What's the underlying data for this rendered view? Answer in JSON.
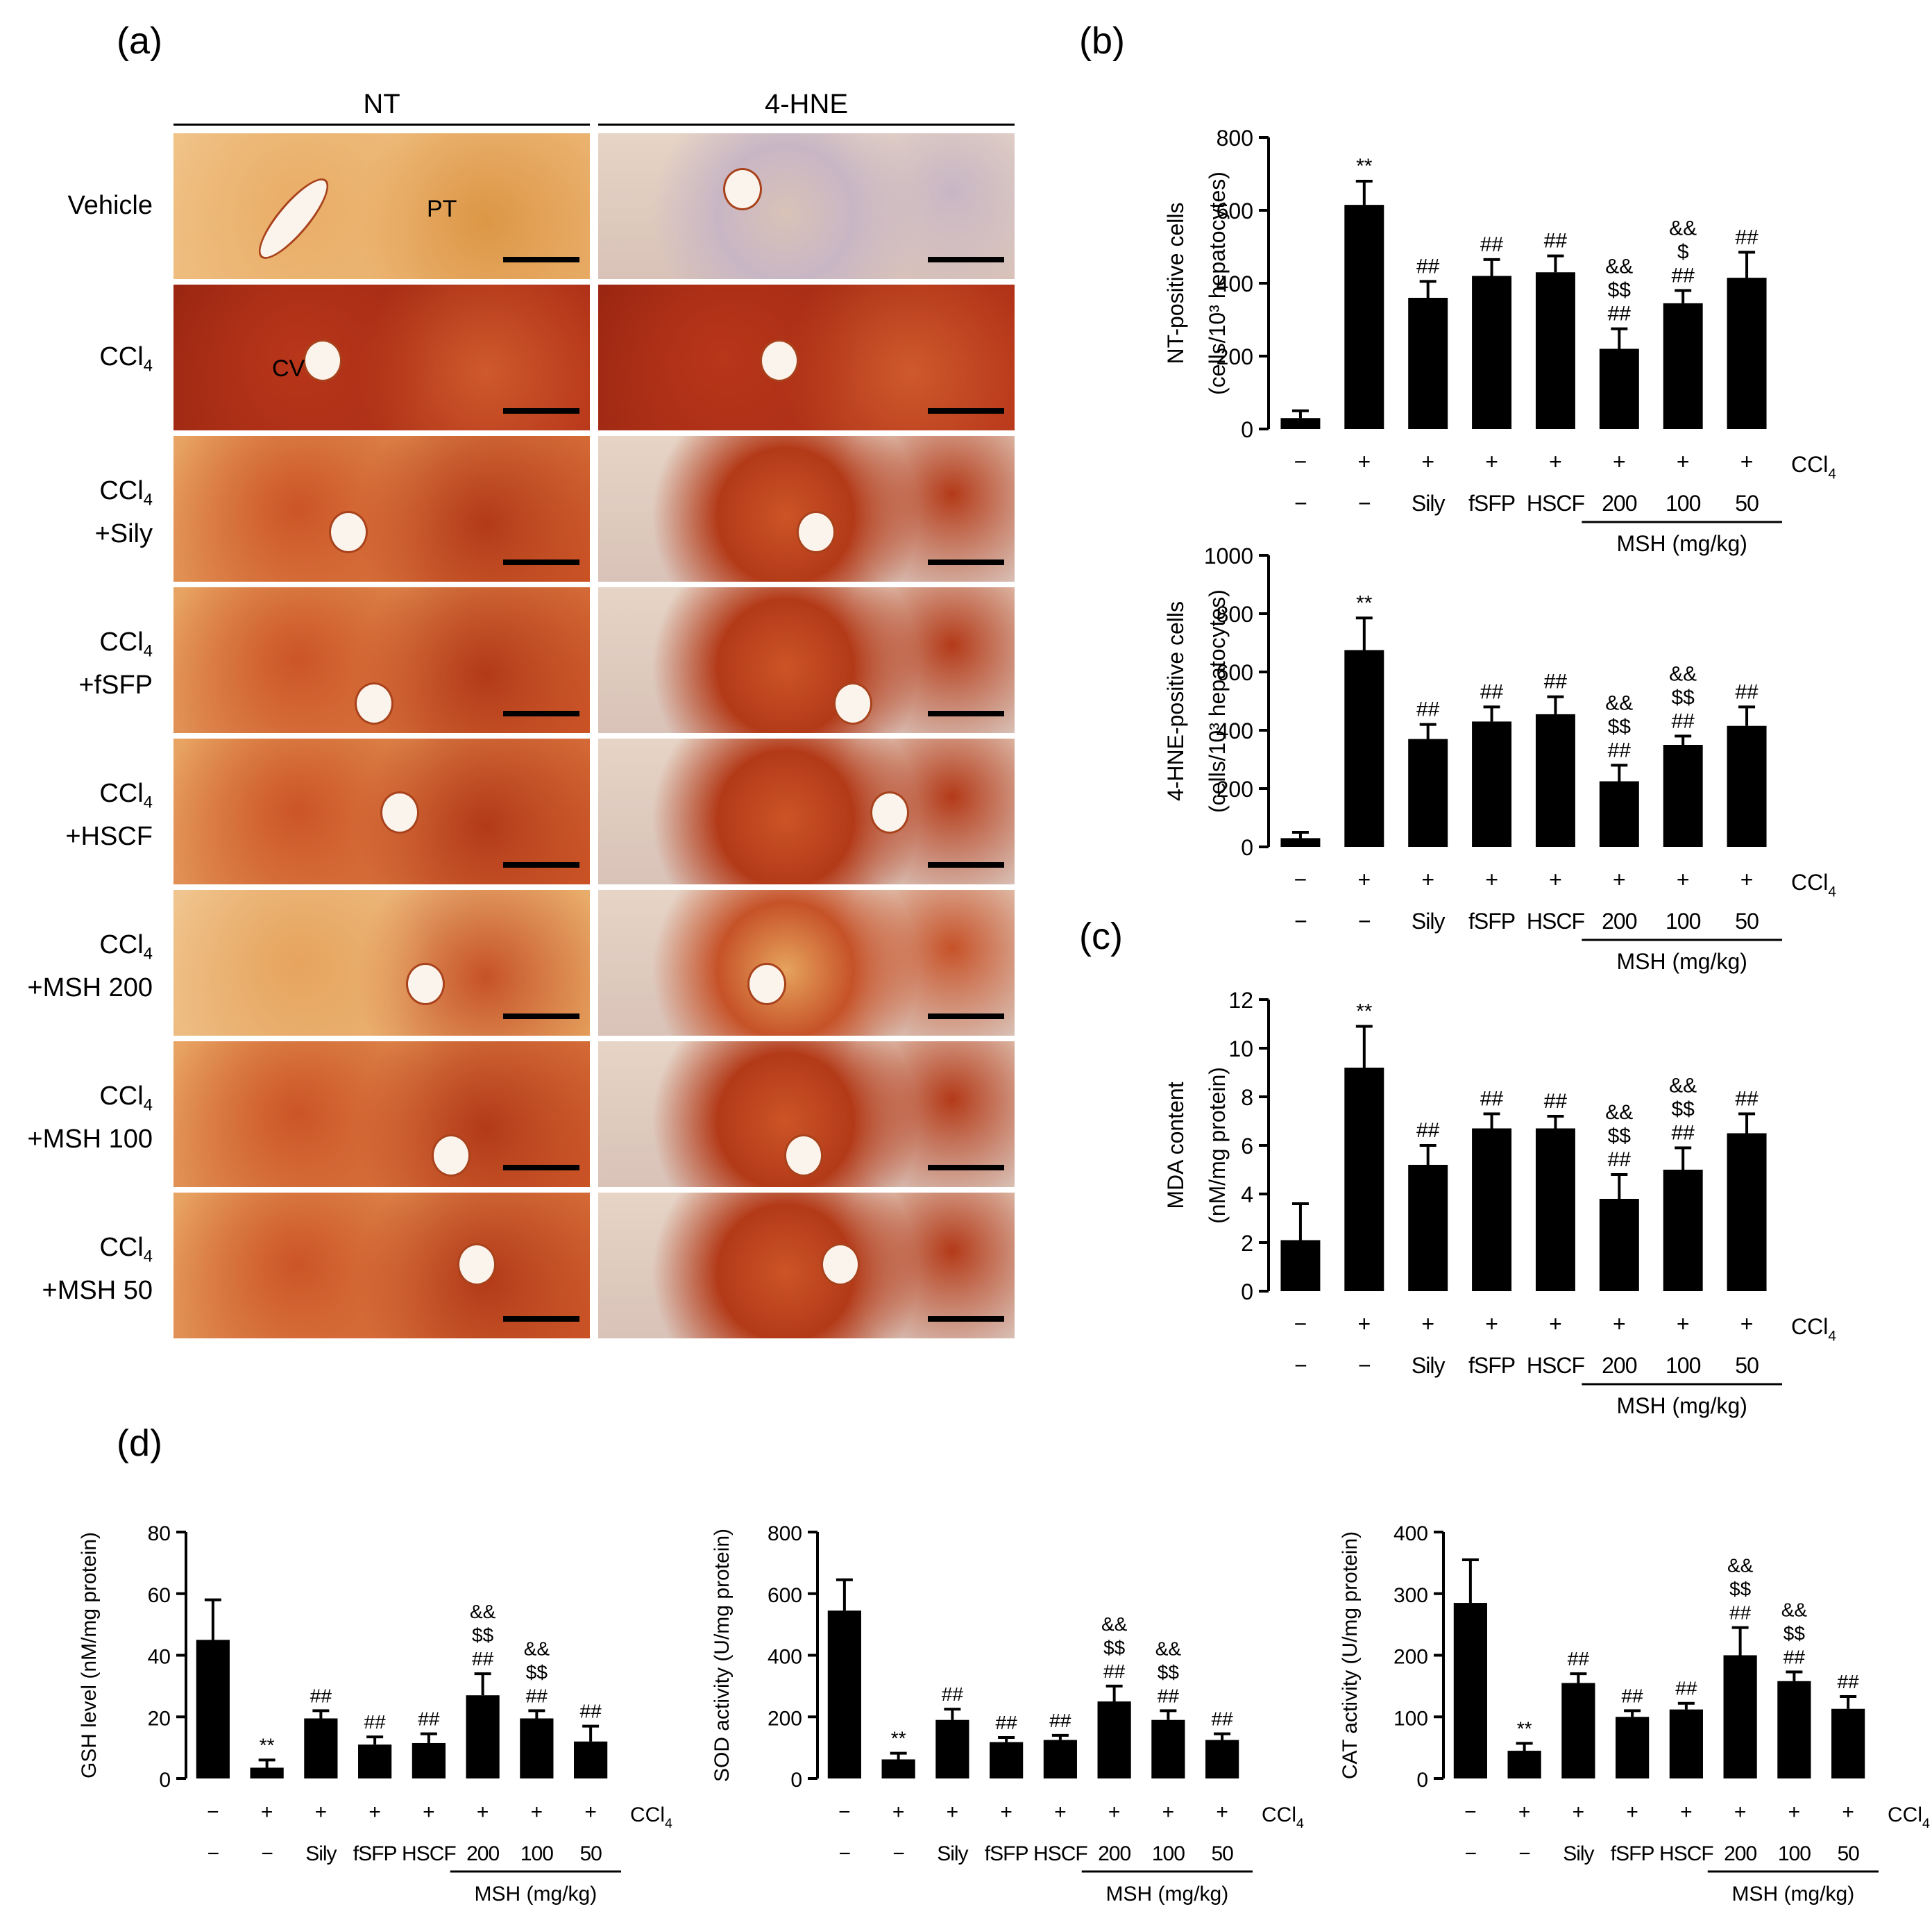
{
  "panels": {
    "a": "(a)",
    "b": "(b)",
    "c": "(c)",
    "d": "(d)"
  },
  "histology": {
    "columns": [
      "NT",
      "4-HNE"
    ],
    "rows": [
      {
        "line1": "Vehicle",
        "line2": "",
        "stain": "light"
      },
      {
        "line1": "CCl4",
        "line2": "",
        "stain": "heavy"
      },
      {
        "line1": "CCl4",
        "line2": "+Sily",
        "stain": "medium"
      },
      {
        "line1": "CCl4",
        "line2": "+fSFP",
        "stain": "medium"
      },
      {
        "line1": "CCl4",
        "line2": "+HSCF",
        "stain": "medium"
      },
      {
        "line1": "CCl4",
        "line2": "+MSH 200",
        "stain": "low"
      },
      {
        "line1": "CCl4",
        "line2": "+MSH 100",
        "stain": "medium"
      },
      {
        "line1": "CCl4",
        "line2": "+MSH 50",
        "stain": "medium"
      }
    ],
    "annotations": [
      "PT",
      "CV"
    ]
  },
  "group_rows": {
    "ccl4_signs": [
      "−",
      "+",
      "+",
      "+",
      "+",
      "+",
      "+",
      "+"
    ],
    "treatments": [
      "−",
      "−",
      "Sily",
      "fSFP",
      "HSCF",
      "200",
      "100",
      "50"
    ],
    "ccl4_label": "CCl4",
    "msh_label": "MSH (mg/kg)"
  },
  "chart_data": [
    {
      "id": "nt",
      "type": "bar",
      "ylabel_1": "NT-positive cells",
      "ylabel_2": "(cells/10³ hepatocytes)",
      "ylim": [
        0,
        800
      ],
      "ticks": [
        0,
        200,
        400,
        600,
        800
      ],
      "values": [
        30,
        615,
        360,
        420,
        430,
        220,
        345,
        415
      ],
      "errors": [
        20,
        65,
        45,
        45,
        45,
        55,
        35,
        70
      ],
      "annotations": [
        [],
        [
          "**"
        ],
        [
          "##"
        ],
        [
          "##"
        ],
        [
          "##"
        ],
        [
          "##",
          "$$",
          "&&"
        ],
        [
          "##",
          "$",
          "&&"
        ],
        [
          "##"
        ]
      ]
    },
    {
      "id": "hne",
      "type": "bar",
      "ylabel_1": "4-HNE-positive cells",
      "ylabel_2": "(cells/10³ hepatocytes)",
      "ylim": [
        0,
        1000
      ],
      "ticks": [
        0,
        200,
        400,
        600,
        800,
        1000
      ],
      "values": [
        30,
        675,
        370,
        430,
        455,
        225,
        350,
        415
      ],
      "errors": [
        20,
        110,
        50,
        50,
        60,
        55,
        30,
        65
      ],
      "annotations": [
        [],
        [
          "**"
        ],
        [
          "##"
        ],
        [
          "##"
        ],
        [
          "##"
        ],
        [
          "##",
          "$$",
          "&&"
        ],
        [
          "##",
          "$$",
          "&&"
        ],
        [
          "##"
        ]
      ]
    },
    {
      "id": "mda",
      "type": "bar",
      "ylabel_1": "MDA content",
      "ylabel_2": "(nM/mg protein)",
      "ylim": [
        0,
        12
      ],
      "ticks": [
        0,
        2,
        4,
        6,
        8,
        10,
        12
      ],
      "values": [
        2.1,
        9.2,
        5.2,
        6.7,
        6.7,
        3.8,
        5.0,
        6.5
      ],
      "errors": [
        1.5,
        1.7,
        0.8,
        0.6,
        0.5,
        1.0,
        0.9,
        0.8
      ],
      "annotations": [
        [],
        [
          "**"
        ],
        [
          "##"
        ],
        [
          "##"
        ],
        [
          "##"
        ],
        [
          "##",
          "$$",
          "&&"
        ],
        [
          "##",
          "$$",
          "&&"
        ],
        [
          "##"
        ]
      ]
    },
    {
      "id": "gsh",
      "type": "bar",
      "ylabel_1": "GSH level (nM/mg protein)",
      "ylabel_2": "",
      "ylim": [
        0,
        80
      ],
      "ticks": [
        0,
        20,
        40,
        60,
        80
      ],
      "values": [
        45,
        3.5,
        19.5,
        11,
        11.5,
        27,
        19.5,
        12
      ],
      "errors": [
        13,
        2.5,
        2.5,
        2.5,
        3,
        7,
        2.5,
        5
      ],
      "annotations": [
        [],
        [
          "**"
        ],
        [
          "##"
        ],
        [
          "##"
        ],
        [
          "##"
        ],
        [
          "##",
          "$$",
          "&&"
        ],
        [
          "##",
          "$$",
          "&&"
        ],
        [
          "##"
        ]
      ]
    },
    {
      "id": "sod",
      "type": "bar",
      "ylabel_1": "SOD activity (U/mg protein)",
      "ylabel_2": "",
      "ylim": [
        0,
        800
      ],
      "ticks": [
        0,
        200,
        400,
        600,
        800
      ],
      "values": [
        545,
        62,
        190,
        118,
        125,
        250,
        190,
        125
      ],
      "errors": [
        100,
        20,
        35,
        15,
        15,
        50,
        30,
        20
      ],
      "annotations": [
        [],
        [
          "**"
        ],
        [
          "##"
        ],
        [
          "##"
        ],
        [
          "##"
        ],
        [
          "##",
          "$$",
          "&&"
        ],
        [
          "##",
          "$$",
          "&&"
        ],
        [
          "##"
        ]
      ]
    },
    {
      "id": "cat",
      "type": "bar",
      "ylabel_1": "CAT activity (U/mg protein)",
      "ylabel_2": "",
      "ylim": [
        0,
        400
      ],
      "ticks": [
        0,
        100,
        200,
        300,
        400
      ],
      "values": [
        285,
        45,
        155,
        100,
        112,
        200,
        158,
        113
      ],
      "errors": [
        70,
        12,
        15,
        10,
        10,
        45,
        15,
        20
      ],
      "annotations": [
        [],
        [
          "**"
        ],
        [
          "##"
        ],
        [
          "##"
        ],
        [
          "##"
        ],
        [
          "##",
          "$$",
          "&&"
        ],
        [
          "##",
          "$$",
          "&&"
        ],
        [
          "##"
        ]
      ]
    }
  ]
}
